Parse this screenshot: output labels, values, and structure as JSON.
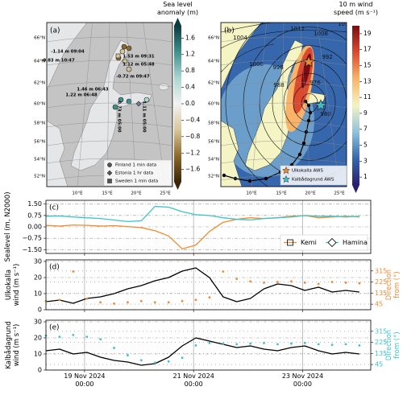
{
  "chart_data": [
    {
      "type": "map",
      "panel_label": "(a)",
      "colorbar_title": "Sea level\nanomaly (m)",
      "clim": [
        -1.9,
        1.9
      ],
      "extend": "both",
      "colorbar_ticks": [
        {
          "value": -1.6,
          "label": "−1.6"
        },
        {
          "value": -1.2,
          "label": "−1.2"
        },
        {
          "value": -0.8,
          "label": "−0.8"
        },
        {
          "value": -0.4,
          "label": "−0.4"
        },
        {
          "value": 0,
          "label": "0.0"
        },
        0.4,
        0.8,
        1.2,
        1.6
      ],
      "colormap": [
        "#3b2506",
        "#8c6a2c",
        "#d8c79a",
        "#f2f2f2",
        "#a9d6d1",
        "#3f8f8c",
        "#0a3c40"
      ],
      "lat_labels": [
        "66°N",
        "64°N",
        "62°N",
        "60°N",
        "58°N",
        "56°N",
        "54°N",
        "52°N"
      ],
      "lon_labels": [
        "10°E",
        "15°E",
        "20°E",
        "25°E"
      ],
      "annotations": [
        "-1.14 m 09:04",
        "1.53 m 09:31",
        "-0.83 m 10:47",
        "1.12 m 05:48",
        "-0.72 m 09:47",
        "1.46 m 06:43",
        "1.22 m 06:48",
        "0.73 m 05:00",
        "1.11 m 05:00"
      ],
      "legend": [
        "Finland 1 min data",
        "Estonia 1 hr data",
        "Sweden 1 min data"
      ]
    },
    {
      "type": "map",
      "panel_label": "(b)",
      "colorbar_title": "10 m wind\nspeed (m s⁻¹)",
      "clim": [
        0,
        20
      ],
      "extend": "min",
      "colorbar_ticks": [
        1,
        3,
        5,
        7,
        9,
        11,
        13,
        15,
        17,
        19
      ],
      "colormap": [
        "#2a1f6e",
        "#3667ad",
        "#8fc3dd",
        "#f4f4c4",
        "#f9b46a",
        "#db4a2f",
        "#7a0c12"
      ],
      "lat_labels": [
        "66°N",
        "64°N",
        "62°N",
        "60°N",
        "58°N",
        "56°N",
        "54°N",
        "52°N"
      ],
      "lon_labels": [
        "10°E",
        "15°E",
        "20°E",
        "25°E"
      ],
      "contour_labels": [
        "1004",
        "1012",
        "1008",
        "1012",
        "1000",
        "996",
        "992",
        "988",
        "976",
        "980"
      ],
      "legend": [
        "Ulkokalla AWS",
        "Kalbådagrund AWS"
      ]
    },
    {
      "type": "panels",
      "x": [
        "2024-11-18T07:00",
        "2024-11-18T13:00",
        "2024-11-18T19:00",
        "2024-11-19T01:00",
        "2024-11-19T07:00",
        "2024-11-19T13:00",
        "2024-11-19T19:00",
        "2024-11-20T01:00",
        "2024-11-20T07:00",
        "2024-11-20T13:00",
        "2024-11-20T19:00",
        "2024-11-21T01:00",
        "2024-11-21T07:00",
        "2024-11-21T13:00",
        "2024-11-21T19:00",
        "2024-11-22T01:00",
        "2024-11-22T07:00",
        "2024-11-22T13:00",
        "2024-11-22T19:00",
        "2024-11-23T01:00",
        "2024-11-23T07:00",
        "2024-11-23T13:00",
        "2024-11-23T19:00",
        "2024-11-24T01:00"
      ],
      "xlim": [
        "2024-11-18T07:00",
        "2024-11-24T06:00"
      ],
      "xticks": [
        {
          "value": "2024-11-19T00:00",
          "label": "19 Nov 2024\n00:00"
        },
        {
          "value": "2024-11-21T00:00",
          "label": "21 Nov 2024\n00:00"
        },
        {
          "value": "2024-11-23T00:00",
          "label": "23 Nov 2024\n00:00"
        }
      ],
      "panels": [
        {
          "type": "line",
          "panel_label": "(c)",
          "ylabel": "Sealevel (m, N2000)",
          "ylim": [
            -1.75,
            1.75
          ],
          "yticks": [
            {
              "value": -1.5,
              "label": "−1.50"
            },
            {
              "value": -0.75,
              "label": "−0.75"
            },
            {
              "value": 0,
              "label": "0.00"
            },
            0.75,
            {
              "value": 1.5,
              "label": "1.50"
            }
          ],
          "grid": true,
          "legend_loc": "lower right",
          "series": [
            {
              "name": "Kemi",
              "color": "#f28a30",
              "marker": "square",
              "values": [
                0.1,
                0.05,
                0.12,
                0.1,
                0.05,
                0.08,
                0.02,
                -0.05,
                -0.25,
                -0.6,
                -1.45,
                -1.2,
                -0.3,
                0.3,
                0.5,
                0.6,
                0.55,
                0.6,
                0.7,
                0.75,
                0.6,
                0.65,
                0.7,
                0.65
              ]
            },
            {
              "name": "Hamina",
              "color": "#3cc3cc",
              "marker": "diamond",
              "values": [
                0.7,
                0.72,
                0.65,
                0.6,
                0.55,
                0.45,
                0.35,
                0.4,
                1.35,
                1.3,
                1.0,
                0.8,
                0.75,
                0.6,
                0.5,
                0.45,
                0.55,
                0.6,
                0.65,
                0.75,
                0.7,
                0.7,
                0.65,
                0.7
              ]
            }
          ]
        },
        {
          "type": "line",
          "panel_label": "(d)",
          "ylabel": "Ulkokalla\nwind (m s⁻¹)",
          "y2label": "Direction\nfrom (°)",
          "y2color": "#f28a30",
          "ylim": [
            0,
            31
          ],
          "yticks": [
            0,
            10,
            20,
            30
          ],
          "y2lim": [
            0,
            405
          ],
          "y2ticks": [
            45,
            135,
            225,
            315
          ],
          "grid": true,
          "series": [
            {
              "color": "#000000",
              "values": [
                5,
                6,
                4,
                7,
                8,
                10,
                13,
                15,
                18,
                20,
                24,
                26,
                20,
                8,
                5,
                7,
                13,
                16,
                15,
                12,
                14,
                11,
                12,
                11
              ]
            },
            {
              "color": "#f28a30",
              "axis": "y2",
              "marker": "dot",
              "values": [
                70,
                80,
                310,
                90,
                60,
                50,
                60,
                70,
                60,
                60,
                70,
                80,
                100,
                310,
                250,
                230,
                220,
                225,
                230,
                220,
                210,
                225,
                220,
                215
              ]
            }
          ]
        },
        {
          "type": "line",
          "panel_label": "(e)",
          "ylabel": "Kalbådagrund\nwind (m s⁻¹)",
          "y2label": "Direction\nfrom (°)",
          "y2color": "#3cc3cc",
          "ylim": [
            0,
            31
          ],
          "yticks": [
            0,
            10,
            20,
            30
          ],
          "y2lim": [
            0,
            405
          ],
          "y2ticks": [
            45,
            135,
            225,
            315
          ],
          "grid": true,
          "series": [
            {
              "color": "#000000",
              "values": [
                12,
                13,
                10,
                11,
                8,
                6,
                5,
                3,
                4,
                8,
                15,
                20,
                18,
                16,
                14,
                15,
                13,
                12,
                14,
                15,
                12,
                10,
                11,
                10
              ]
            },
            {
              "color": "#3cc3cc",
              "axis": "y2",
              "marker": "dot",
              "values": [
                280,
                270,
                285,
                270,
                250,
                180,
                120,
                80,
                60,
                70,
                100,
                200,
                220,
                215,
                210,
                215,
                220,
                210,
                215,
                220,
                210,
                205,
                210,
                200
              ]
            }
          ]
        }
      ]
    }
  ]
}
